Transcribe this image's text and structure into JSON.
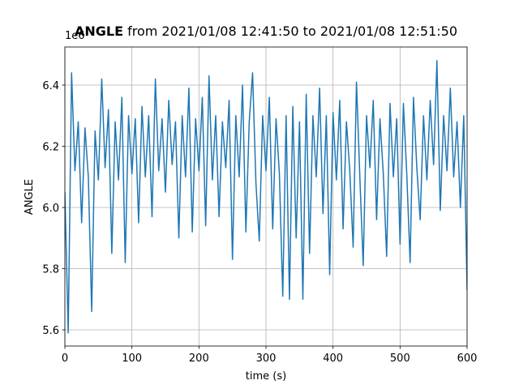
{
  "chart_data": {
    "type": "line",
    "title": {
      "variable": "ANGLE",
      "range": "from 2021/01/08 12:41:50 to 2021/01/08 12:51:50"
    },
    "y_offset_label": "1e6",
    "x_label": "time (s)",
    "y_label": "ANGLE",
    "x": [
      0,
      5,
      10,
      15,
      20,
      25,
      30,
      35,
      40,
      45,
      50,
      55,
      60,
      65,
      70,
      75,
      80,
      85,
      90,
      95,
      100,
      105,
      110,
      115,
      120,
      125,
      130,
      135,
      140,
      145,
      150,
      155,
      160,
      165,
      170,
      175,
      180,
      185,
      190,
      195,
      200,
      205,
      210,
      215,
      220,
      225,
      230,
      235,
      240,
      245,
      250,
      255,
      260,
      265,
      270,
      275,
      280,
      285,
      290,
      295,
      300,
      305,
      310,
      315,
      320,
      325,
      330,
      335,
      340,
      345,
      350,
      355,
      360,
      365,
      370,
      375,
      380,
      385,
      390,
      395,
      400,
      405,
      410,
      415,
      420,
      425,
      430,
      435,
      440,
      445,
      450,
      455,
      460,
      465,
      470,
      475,
      480,
      485,
      490,
      495,
      500,
      505,
      510,
      515,
      520,
      525,
      530,
      535,
      540,
      545,
      550,
      555,
      560,
      565,
      570,
      575,
      580,
      585,
      590,
      595,
      600
    ],
    "series": [
      {
        "name": "ANGLE",
        "color": "#1f77b4",
        "values": [
          6.05,
          5.59,
          6.44,
          6.12,
          6.28,
          5.95,
          6.26,
          6.1,
          5.66,
          6.25,
          6.09,
          6.42,
          6.13,
          6.32,
          5.85,
          6.28,
          6.09,
          6.36,
          5.82,
          6.3,
          6.11,
          6.29,
          5.95,
          6.33,
          6.1,
          6.3,
          5.97,
          6.42,
          6.12,
          6.29,
          6.05,
          6.35,
          6.14,
          6.28,
          5.9,
          6.3,
          6.1,
          6.39,
          5.92,
          6.29,
          6.12,
          6.36,
          5.94,
          6.43,
          6.09,
          6.3,
          5.97,
          6.28,
          6.13,
          6.35,
          5.83,
          6.3,
          6.1,
          6.4,
          5.92,
          6.28,
          6.44,
          6.08,
          5.89,
          6.3,
          6.12,
          6.36,
          5.93,
          6.29,
          6.11,
          5.71,
          6.3,
          5.7,
          6.33,
          5.9,
          6.28,
          5.7,
          6.37,
          5.85,
          6.3,
          6.1,
          6.39,
          5.98,
          6.3,
          5.78,
          6.31,
          6.09,
          6.35,
          5.93,
          6.28,
          6.12,
          5.87,
          6.41,
          6.1,
          5.81,
          6.3,
          6.13,
          6.35,
          5.96,
          6.29,
          6.11,
          5.84,
          6.34,
          6.1,
          6.29,
          5.88,
          6.34,
          6.11,
          5.82,
          6.36,
          6.13,
          5.96,
          6.3,
          6.09,
          6.35,
          6.14,
          6.48,
          5.99,
          6.3,
          6.12,
          6.39,
          6.1,
          6.28,
          6.0,
          6.3,
          5.73
        ]
      }
    ],
    "xlim": [
      0,
      600
    ],
    "ylim": [
      5.547,
      6.5245
    ],
    "xticks": [
      0,
      100,
      200,
      300,
      400,
      500,
      600
    ],
    "yticks": [
      5.6,
      5.8,
      {
        "value": 6,
        "label": "6.0"
      },
      6.2,
      6.4
    ],
    "grid": true
  }
}
